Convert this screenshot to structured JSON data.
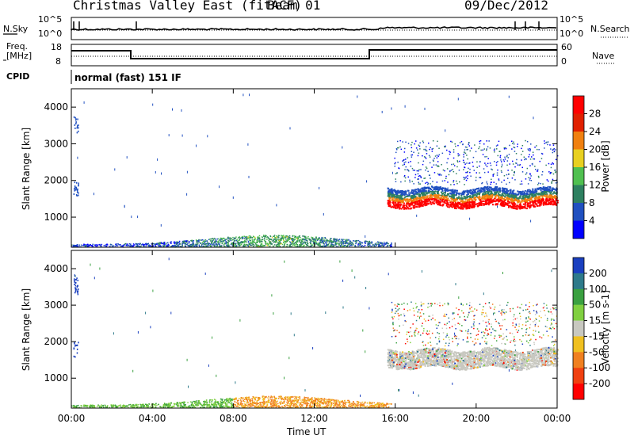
{
  "header": {
    "station": "Christmas Valley East (fitACF)",
    "beam": "Beam 01",
    "date": "09/Dec/2012"
  },
  "noise_panel": {
    "left_label": "N.Sky",
    "right_label": "N.Search",
    "left_ticks": [
      "10^5",
      "10^0"
    ],
    "right_ticks": [
      "10^5",
      "10^0"
    ]
  },
  "freq_panel": {
    "left_label_1": "Freq.",
    "left_label_2": "[MHz]",
    "left_ticks": [
      "18",
      "8"
    ],
    "right_label": "Nave",
    "right_ticks": [
      "60",
      "0"
    ]
  },
  "cpid": {
    "label": "CPID",
    "value": "normal (fast) 151 IF"
  },
  "chart_data": [
    {
      "type": "heatmap",
      "panel": "power",
      "ylabel": "Slant Range [km]",
      "xlabel": "",
      "yticks": [
        1000,
        2000,
        3000,
        4000
      ],
      "ylim": [
        180,
        4500
      ],
      "xticks": [
        "00:00",
        "04:00",
        "08:00",
        "12:00",
        "16:00",
        "20:00",
        "00:00"
      ],
      "colorbar": {
        "label": "Power [dB]",
        "ticks": [
          "4",
          "8",
          "12",
          "16",
          "20",
          "24",
          "28"
        ],
        "colors": [
          "#0000ff",
          "#2050c0",
          "#2e8060",
          "#50c050",
          "#e8d020",
          "#f08010",
          "#e02000",
          "#ff0000"
        ]
      }
    },
    {
      "type": "heatmap",
      "panel": "velocity",
      "ylabel": "Slant Range [km]",
      "xlabel": "Time UT",
      "yticks": [
        1000,
        2000,
        3000,
        4000
      ],
      "ylim": [
        180,
        4500
      ],
      "xticks": [
        "00:00",
        "04:00",
        "08:00",
        "12:00",
        "16:00",
        "20:00",
        "00:00"
      ],
      "colorbar": {
        "label": "Velocity [m s-1]",
        "ticks": [
          "200",
          "100",
          "50",
          "15",
          "-15",
          "-50",
          "-100",
          "-200"
        ],
        "colors": [
          "#1a3fbf",
          "#2e7a8a",
          "#3aa040",
          "#80d040",
          "#c8c8c0",
          "#f0c020",
          "#f08020",
          "#f04010",
          "#ff0000"
        ]
      }
    }
  ]
}
